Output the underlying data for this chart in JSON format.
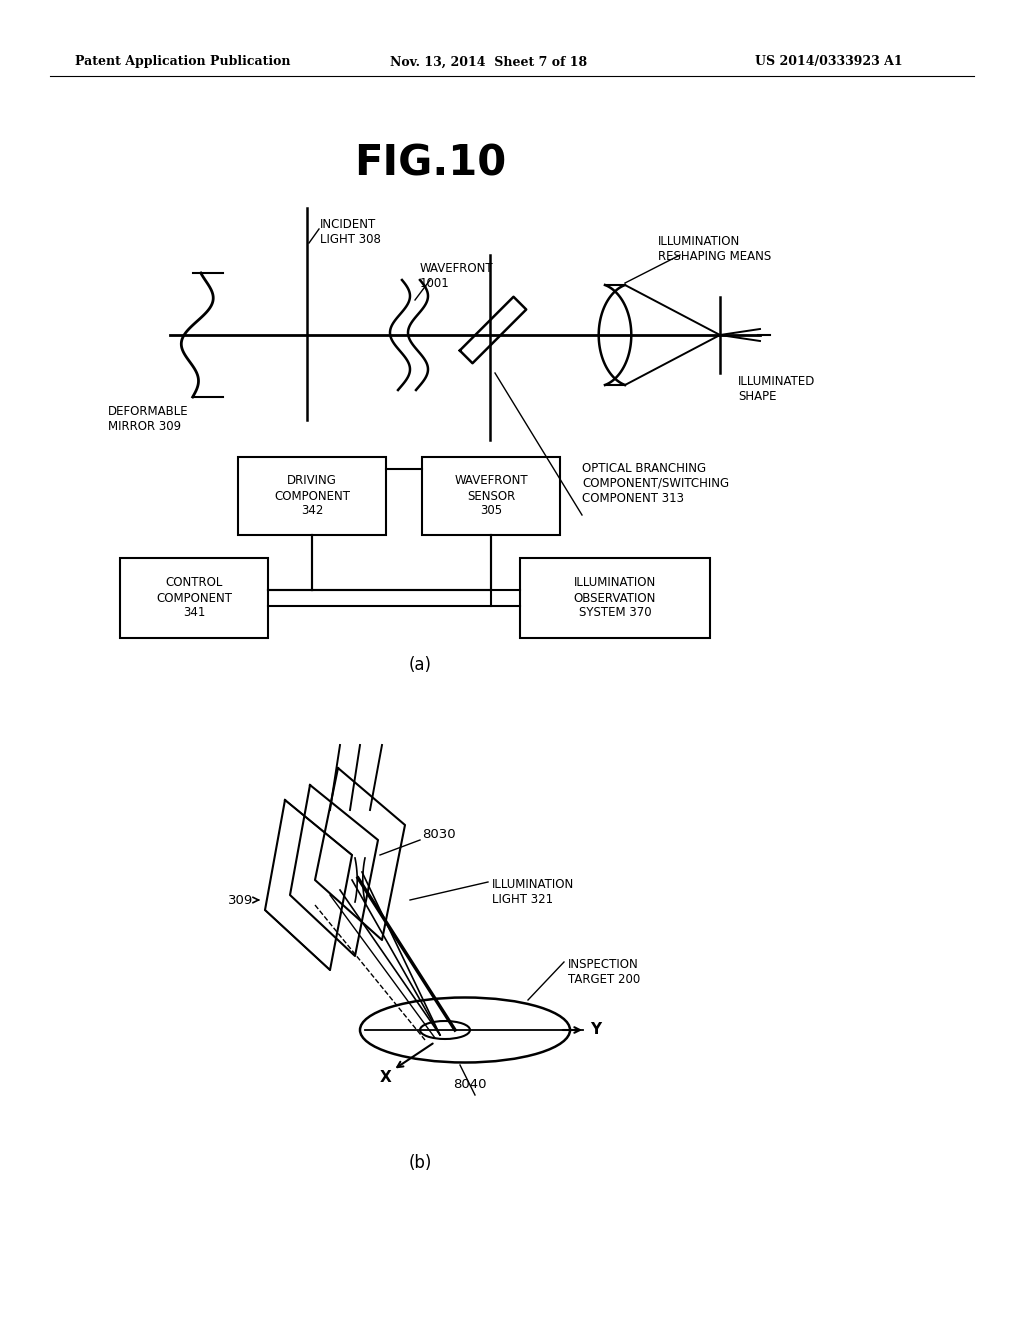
{
  "title": "FIG.10",
  "header_left": "Patent Application Publication",
  "header_mid": "Nov. 13, 2014  Sheet 7 of 18",
  "header_right": "US 2014/0333923 A1",
  "background_color": "#ffffff",
  "label_a": "(a)",
  "label_b": "(b)"
}
